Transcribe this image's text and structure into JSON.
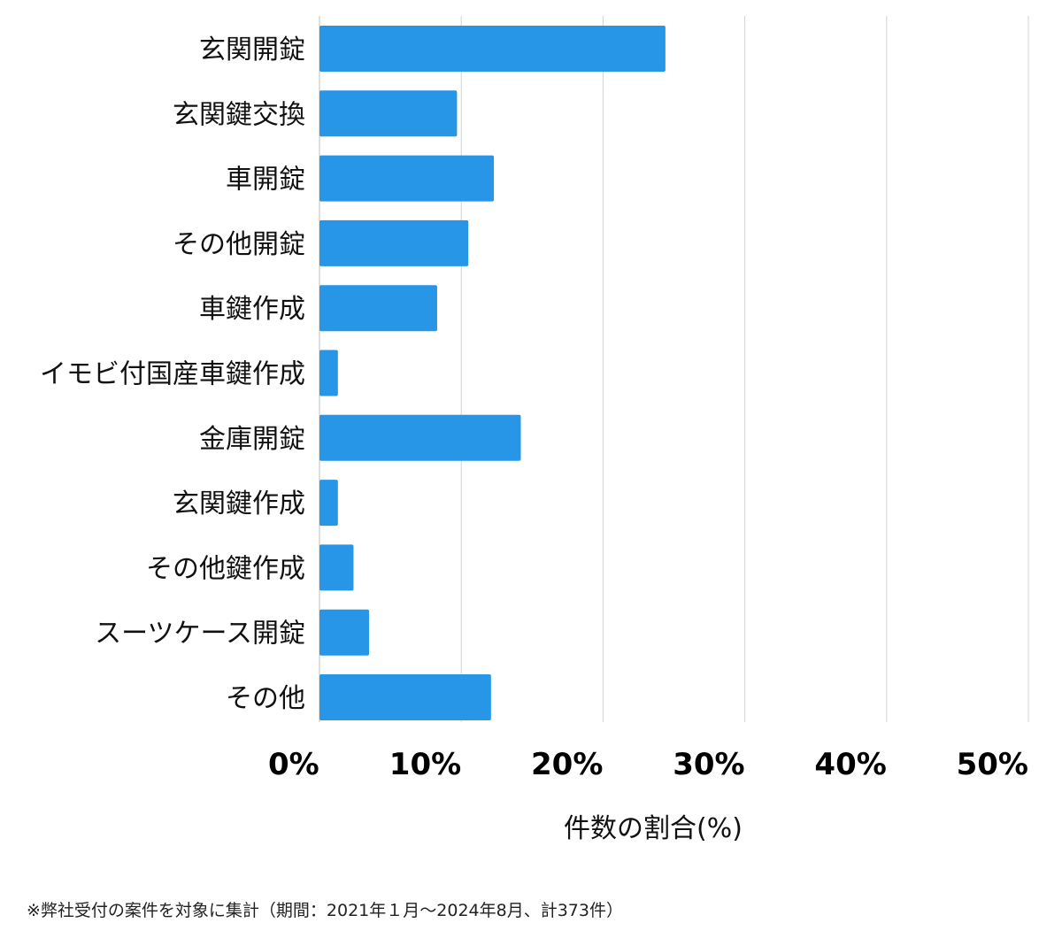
{
  "chart_data": {
    "type": "bar",
    "orientation": "horizontal",
    "categories": [
      "玄関開錠",
      "玄関鍵交換",
      "車開錠",
      "その他開錠",
      "車鍵作成",
      "イモビ付国産車鍵作成",
      "金庫開錠",
      "玄関鍵作成",
      "その他鍵作成",
      "スーツケース開錠",
      "その他"
    ],
    "values": [
      24.4,
      9.7,
      12.3,
      10.5,
      8.3,
      1.3,
      14.2,
      1.3,
      2.4,
      3.5,
      12.1
    ],
    "xlabel": "件数の割合(%)",
    "xlim": [
      0,
      50
    ],
    "xticks": [
      "0%",
      "10%",
      "20%",
      "30%",
      "40%",
      "50%"
    ],
    "grid": true,
    "bar_color": "#2896e6",
    "grid_color": "#d3d3d3"
  },
  "footnote": "※弊社受付の案件を対象に集計（期間：2021年１月〜2024年8月、計373件）"
}
